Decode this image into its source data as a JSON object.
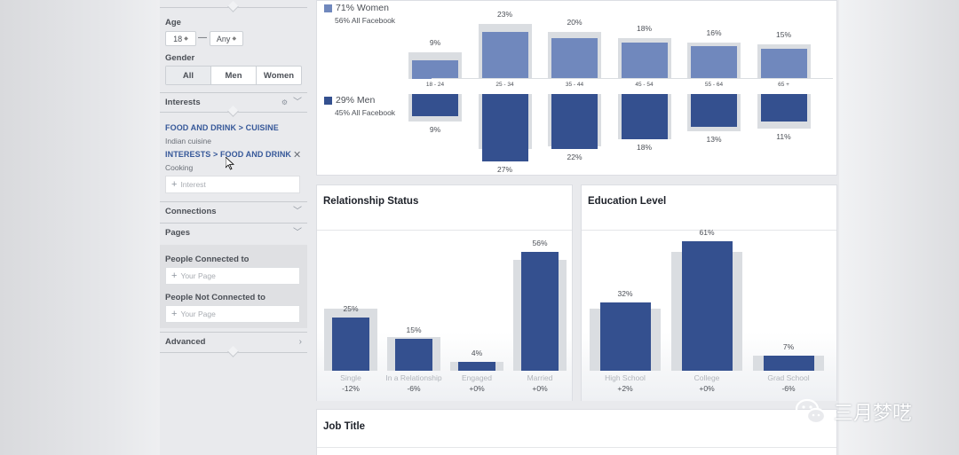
{
  "sidebar": {
    "age": {
      "label": "Age",
      "min": "18",
      "max": "Any"
    },
    "gender": {
      "label": "Gender",
      "options": [
        "All",
        "Men",
        "Women"
      ]
    },
    "interests": {
      "label": "Interests",
      "items": [
        {
          "path": "FOOD AND DRINK > CUISINE",
          "value": "Indian cuisine"
        },
        {
          "path": "INTERESTS > FOOD AND DRINK",
          "value": "Cooking"
        }
      ],
      "placeholder": "Interest"
    },
    "connections_label": "Connections",
    "pages_label": "Pages",
    "people_connected": {
      "label": "People Connected to",
      "placeholder": "Your Page"
    },
    "people_not_connected": {
      "label": "People Not Connected to",
      "placeholder": "Your Page"
    },
    "advanced_label": "Advanced"
  },
  "age_gender": {
    "women": {
      "label": "71% Women",
      "sub": "56% All Facebook"
    },
    "men": {
      "label": "29% Men",
      "sub": "45% All Facebook"
    },
    "colors": {
      "women": "#7088bd",
      "men": "#34508f",
      "benchmark": "#dadde1"
    }
  },
  "relationship": {
    "title": "Relationship Status"
  },
  "education": {
    "title": "Education Level"
  },
  "job": {
    "title": "Job Title"
  },
  "watermark": {
    "text": "三月梦呓"
  },
  "chart_data": [
    {
      "type": "bar",
      "categories": [
        "18 - 24",
        "25 - 34",
        "35 - 44",
        "45 - 54",
        "55 - 64",
        "65 +"
      ],
      "series": [
        {
          "name": "71% Women",
          "labels": [
            "9%",
            "23%",
            "20%",
            "18%",
            "16%",
            "15%"
          ],
          "values": [
            9,
            23,
            20,
            18,
            16,
            15
          ]
        },
        {
          "name": "29% Men",
          "labels": [
            "9%",
            "27%",
            "22%",
            "18%",
            "13%",
            "11%"
          ],
          "values": [
            9,
            27,
            22,
            18,
            13,
            11
          ]
        }
      ]
    },
    {
      "type": "bar",
      "title": "Relationship Status",
      "categories": [
        "Single",
        "In a Relationship",
        "Engaged",
        "Married"
      ],
      "labels": [
        "25%",
        "15%",
        "4%",
        "56%"
      ],
      "values": [
        25,
        15,
        4,
        56
      ],
      "diffs": [
        "-12%",
        "-6%",
        "+0%",
        "+0%"
      ]
    },
    {
      "type": "bar",
      "title": "Education Level",
      "categories": [
        "High School",
        "College",
        "Grad School"
      ],
      "labels": [
        "32%",
        "61%",
        "7%"
      ],
      "values": [
        32,
        61,
        7
      ],
      "diffs": [
        "+2%",
        "+0%",
        "-6%"
      ]
    }
  ]
}
